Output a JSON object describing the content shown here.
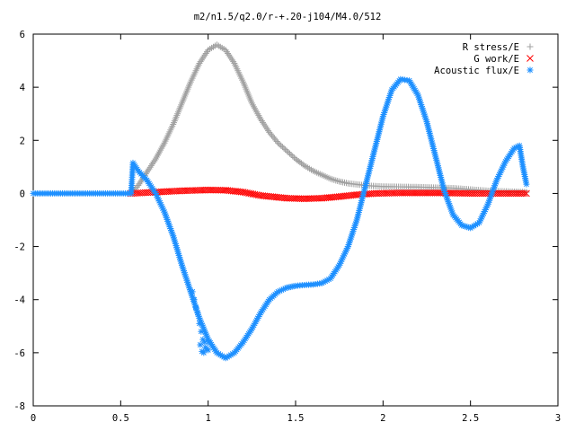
{
  "chart_data": {
    "type": "scatter",
    "title": "m2/n1.5/q2.0/r-+.20-j104/M4.0/512",
    "xlabel": "",
    "ylabel": "",
    "xlim": [
      0,
      3
    ],
    "ylim": [
      -8,
      6
    ],
    "x_ticks": [
      "0",
      "0.5",
      "1",
      "1.5",
      "2",
      "2.5",
      "3"
    ],
    "y_ticks": [
      "-8",
      "-6",
      "-4",
      "-2",
      "0",
      "2",
      "4",
      "6"
    ],
    "grid": false,
    "legend_position": "top-right",
    "series": [
      {
        "name": "R stress/E",
        "marker": "+",
        "color": "#a0a0a0",
        "x_range": [
          0.56,
          2.82
        ],
        "points": [
          [
            0.56,
            0.0
          ],
          [
            0.6,
            0.3
          ],
          [
            0.65,
            0.8
          ],
          [
            0.7,
            1.3
          ],
          [
            0.75,
            1.9
          ],
          [
            0.8,
            2.6
          ],
          [
            0.85,
            3.4
          ],
          [
            0.9,
            4.2
          ],
          [
            0.95,
            4.9
          ],
          [
            1.0,
            5.4
          ],
          [
            1.05,
            5.6
          ],
          [
            1.1,
            5.4
          ],
          [
            1.15,
            4.9
          ],
          [
            1.2,
            4.2
          ],
          [
            1.25,
            3.4
          ],
          [
            1.3,
            2.8
          ],
          [
            1.35,
            2.3
          ],
          [
            1.4,
            1.9
          ],
          [
            1.45,
            1.6
          ],
          [
            1.5,
            1.3
          ],
          [
            1.55,
            1.05
          ],
          [
            1.6,
            0.85
          ],
          [
            1.65,
            0.7
          ],
          [
            1.7,
            0.55
          ],
          [
            1.75,
            0.45
          ],
          [
            1.8,
            0.38
          ],
          [
            1.9,
            0.3
          ],
          [
            2.0,
            0.26
          ],
          [
            2.2,
            0.24
          ],
          [
            2.4,
            0.2
          ],
          [
            2.6,
            0.1
          ],
          [
            2.82,
            0.05
          ]
        ]
      },
      {
        "name": "G work/E",
        "marker": "x",
        "color": "#ff0000",
        "x_range": [
          0.56,
          2.82
        ],
        "points": [
          [
            0.56,
            0.0
          ],
          [
            0.7,
            0.05
          ],
          [
            0.85,
            0.1
          ],
          [
            1.0,
            0.13
          ],
          [
            1.1,
            0.12
          ],
          [
            1.2,
            0.05
          ],
          [
            1.3,
            -0.08
          ],
          [
            1.45,
            -0.18
          ],
          [
            1.55,
            -0.2
          ],
          [
            1.65,
            -0.18
          ],
          [
            1.75,
            -0.12
          ],
          [
            1.85,
            -0.05
          ],
          [
            1.95,
            0.0
          ],
          [
            2.1,
            0.02
          ],
          [
            2.3,
            0.02
          ],
          [
            2.5,
            0.0
          ],
          [
            2.82,
            0.0
          ]
        ]
      },
      {
        "name": "Acoustic flux/E",
        "marker": "*",
        "color": "#1e90ff",
        "x_range": [
          0.0,
          2.82
        ],
        "points": [
          [
            0.0,
            0.0
          ],
          [
            0.3,
            0.0
          ],
          [
            0.56,
            0.0
          ],
          [
            0.57,
            1.15
          ],
          [
            0.6,
            0.85
          ],
          [
            0.65,
            0.5
          ],
          [
            0.7,
            0.0
          ],
          [
            0.75,
            -0.7
          ],
          [
            0.8,
            -1.6
          ],
          [
            0.85,
            -2.7
          ],
          [
            0.9,
            -3.7
          ],
          [
            0.95,
            -4.7
          ],
          [
            1.0,
            -5.5
          ],
          [
            1.05,
            -6.0
          ],
          [
            1.1,
            -6.2
          ],
          [
            1.15,
            -6.0
          ],
          [
            1.2,
            -5.6
          ],
          [
            1.25,
            -5.1
          ],
          [
            1.3,
            -4.5
          ],
          [
            1.35,
            -4.0
          ],
          [
            1.4,
            -3.7
          ],
          [
            1.45,
            -3.55
          ],
          [
            1.5,
            -3.48
          ],
          [
            1.55,
            -3.45
          ],
          [
            1.6,
            -3.43
          ],
          [
            1.65,
            -3.38
          ],
          [
            1.7,
            -3.2
          ],
          [
            1.75,
            -2.7
          ],
          [
            1.8,
            -2.0
          ],
          [
            1.85,
            -1.0
          ],
          [
            1.9,
            0.3
          ],
          [
            1.95,
            1.6
          ],
          [
            2.0,
            2.9
          ],
          [
            2.05,
            3.9
          ],
          [
            2.1,
            4.3
          ],
          [
            2.15,
            4.25
          ],
          [
            2.2,
            3.7
          ],
          [
            2.25,
            2.7
          ],
          [
            2.3,
            1.4
          ],
          [
            2.35,
            0.1
          ],
          [
            2.4,
            -0.8
          ],
          [
            2.45,
            -1.2
          ],
          [
            2.5,
            -1.3
          ],
          [
            2.55,
            -1.1
          ],
          [
            2.6,
            -0.4
          ],
          [
            2.65,
            0.5
          ],
          [
            2.7,
            1.2
          ],
          [
            2.75,
            1.7
          ],
          [
            2.78,
            1.8
          ],
          [
            2.8,
            1.0
          ],
          [
            2.82,
            0.35
          ]
        ],
        "scatter_points": [
          [
            0.91,
            -3.7
          ],
          [
            0.92,
            -4.0
          ],
          [
            0.93,
            -4.3
          ],
          [
            0.94,
            -4.5
          ],
          [
            0.95,
            -4.9
          ],
          [
            0.96,
            -5.2
          ],
          [
            0.97,
            -5.5
          ],
          [
            0.98,
            -5.6
          ],
          [
            0.99,
            -5.85
          ],
          [
            1.0,
            -5.9
          ],
          [
            0.955,
            -5.7
          ],
          [
            0.965,
            -5.95
          ],
          [
            0.975,
            -6.0
          ],
          [
            0.985,
            -5.8
          ],
          [
            1.005,
            -5.6
          ]
        ]
      }
    ]
  }
}
